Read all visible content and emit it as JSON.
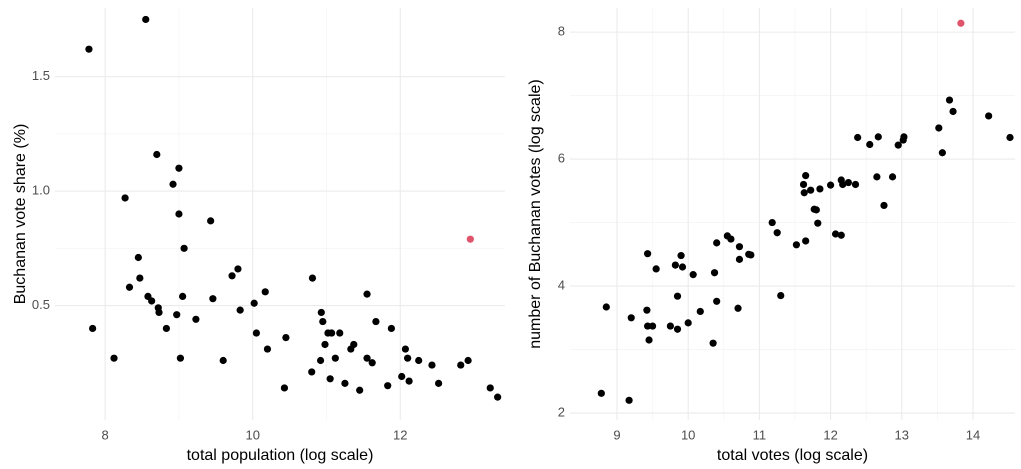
{
  "chart_data": [
    {
      "type": "scatter",
      "xlabel": "total population (log scale)",
      "ylabel": "Buchanan vote share (%)",
      "xlim": [
        7.32,
        13.42
      ],
      "ylim": [
        0,
        1.8
      ],
      "xticks": [
        8,
        10,
        12
      ],
      "yticks": [
        0.5,
        {
          "value": 1,
          "label": "1.0"
        },
        1.5
      ],
      "grid": true,
      "minor_grid": true,
      "series": [
        {
          "color": "#000000",
          "x": [
            7.78,
            8.55,
            7.83,
            8.12,
            8.27,
            8.33,
            8.45,
            8.47,
            8.58,
            8.63,
            8.7,
            8.72,
            8.73,
            8.83,
            8.92,
            8.97,
            9.0,
            9.0,
            9.02,
            9.05,
            9.07,
            9.23,
            9.43,
            9.46,
            9.6,
            9.72,
            9.8,
            9.83,
            10.02,
            10.05,
            10.17,
            10.2,
            10.45,
            10.43,
            10.81,
            10.8,
            10.93,
            10.95,
            10.92,
            10.98,
            11.02,
            11.05,
            11.07,
            11.12,
            11.18,
            11.25,
            11.33,
            11.37,
            11.45,
            11.55,
            11.55,
            11.62,
            11.67,
            11.83,
            11.88,
            12.02,
            12.07,
            12.1,
            12.12,
            12.25,
            12.43,
            12.52,
            12.82,
            12.92,
            13.22,
            13.32
          ],
          "values": [
            1.62,
            1.75,
            0.4,
            0.27,
            0.97,
            0.58,
            0.71,
            0.62,
            0.54,
            0.52,
            1.16,
            0.49,
            0.47,
            0.4,
            1.03,
            0.46,
            1.1,
            0.9,
            0.27,
            0.54,
            0.75,
            0.44,
            0.87,
            0.53,
            0.26,
            0.63,
            0.66,
            0.48,
            0.51,
            0.38,
            0.56,
            0.31,
            0.36,
            0.14,
            0.62,
            0.21,
            0.47,
            0.43,
            0.26,
            0.33,
            0.38,
            0.18,
            0.38,
            0.27,
            0.38,
            0.16,
            0.31,
            0.33,
            0.13,
            0.55,
            0.27,
            0.25,
            0.43,
            0.15,
            0.4,
            0.19,
            0.31,
            0.27,
            0.17,
            0.26,
            0.24,
            0.16,
            0.24,
            0.26,
            0.14,
            0.1
          ]
        },
        {
          "color": "#df536b",
          "x": [
            12.95
          ],
          "values": [
            0.79
          ]
        }
      ]
    },
    {
      "type": "scatter",
      "xlabel": "total votes (log scale)",
      "ylabel": "number of Buchanan votes (log scale)",
      "xlim": [
        8.34,
        14.59
      ],
      "ylim": [
        1.89,
        8.38
      ],
      "xticks": [
        9,
        10,
        11,
        12,
        13,
        14
      ],
      "yticks": [
        2,
        4,
        6,
        8
      ],
      "grid": true,
      "minor_grid": true,
      "series": [
        {
          "color": "#000000",
          "x": [
            8.78,
            9.17,
            8.85,
            9.2,
            9.42,
            9.43,
            9.45,
            9.5,
            9.43,
            9.55,
            9.75,
            9.82,
            9.85,
            9.85,
            9.9,
            9.92,
            10.0,
            10.07,
            10.17,
            10.35,
            10.37,
            10.4,
            10.4,
            10.55,
            10.6,
            10.7,
            10.72,
            10.72,
            10.85,
            10.88,
            11.18,
            11.25,
            11.3,
            11.52,
            11.62,
            11.63,
            11.65,
            11.65,
            11.72,
            11.77,
            11.8,
            11.82,
            11.85,
            12.0,
            12.07,
            12.15,
            12.15,
            12.17,
            12.25,
            12.35,
            12.38,
            12.55,
            12.65,
            12.67,
            12.75,
            12.87,
            12.95,
            13.02,
            13.03,
            13.52,
            13.57,
            13.67,
            13.72,
            14.22,
            14.52
          ],
          "values": [
            2.31,
            2.2,
            3.67,
            3.5,
            3.62,
            3.37,
            3.15,
            3.37,
            4.51,
            4.27,
            3.37,
            4.33,
            3.32,
            3.84,
            4.48,
            4.3,
            3.42,
            4.18,
            3.6,
            3.1,
            4.21,
            3.76,
            4.68,
            4.79,
            4.74,
            3.65,
            4.62,
            4.42,
            4.5,
            4.49,
            5.0,
            4.84,
            3.85,
            4.65,
            5.6,
            5.47,
            5.74,
            4.71,
            5.51,
            5.21,
            5.2,
            4.99,
            5.53,
            5.59,
            4.82,
            4.8,
            5.67,
            5.6,
            5.63,
            5.6,
            6.34,
            6.23,
            5.72,
            6.35,
            5.27,
            5.72,
            6.22,
            6.3,
            6.35,
            6.49,
            6.1,
            6.93,
            6.75,
            6.68,
            6.34
          ]
        },
        {
          "color": "#df536b",
          "x": [
            13.83
          ],
          "values": [
            8.14
          ]
        }
      ]
    }
  ]
}
